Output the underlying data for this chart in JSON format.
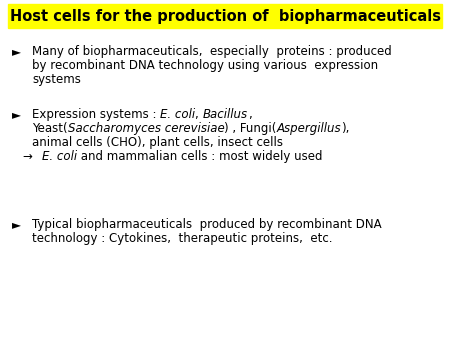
{
  "title": "Host cells for the production of  biopharmaceuticals",
  "title_bg": "#ffff00",
  "title_fontsize": 10.5,
  "bg_color": "#ffffff",
  "text_color": "#000000",
  "font_size": 8.5,
  "bullet_char": "►",
  "arrow_char": "→",
  "bullet1_lines": [
    "Many of biopharmaceuticals,  especially  proteins : produced",
    "by recombinant DNA technology using various  expression",
    "systems"
  ],
  "bullet2_line1_parts": [
    [
      "Expression systems : ",
      false
    ],
    [
      "E. coli",
      true
    ],
    [
      ", ",
      false
    ],
    [
      "Bacillus",
      true
    ],
    [
      ",",
      false
    ]
  ],
  "bullet2_line2_parts": [
    [
      "Yeast(",
      false
    ],
    [
      "Saccharomyces cerevisiae",
      true
    ],
    [
      ") , Fungi(",
      false
    ],
    [
      "Aspergillus",
      true
    ],
    [
      "),",
      false
    ]
  ],
  "bullet2_line3": "animal cells (CHO), plant cells, insect cells",
  "bullet2_sub_parts": [
    [
      " ",
      false
    ],
    [
      "E. coli",
      true
    ],
    [
      " and mammalian cells : most widely used",
      false
    ]
  ],
  "bullet3_lines": [
    "Typical biopharmaceuticals  produced by recombinant DNA",
    "technology : Cytokines,  therapeutic proteins,  etc."
  ]
}
